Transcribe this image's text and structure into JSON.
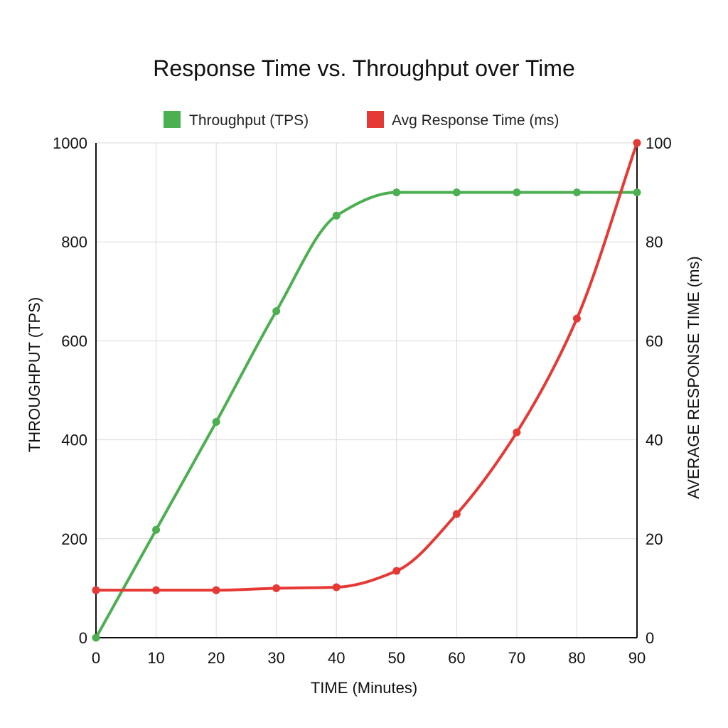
{
  "chart_data": {
    "type": "line",
    "title": "Response Time vs. Throughput over Time",
    "xlabel": "TIME (Minutes)",
    "ylabel_left": "THROUGHPUT (TPS)",
    "ylabel_right": "AVERAGE RESPONSE TIME (ms)",
    "x": [
      0,
      10,
      20,
      30,
      40,
      50,
      60,
      70,
      80,
      90
    ],
    "xlim": [
      0,
      90
    ],
    "ylim_left": [
      0,
      1000
    ],
    "ylim_right": [
      0,
      100
    ],
    "xticks": [
      "0",
      "10",
      "20",
      "30",
      "40",
      "50",
      "60",
      "70",
      "80",
      "90"
    ],
    "yticks_left": [
      "0",
      "200",
      "400",
      "600",
      "800",
      "1000"
    ],
    "yticks_right": [
      "0",
      "20",
      "40",
      "60",
      "80",
      "100"
    ],
    "grid": true,
    "legend_position": "top-center",
    "series": [
      {
        "name": "Throughput (TPS)",
        "axis": "left",
        "color": "#4caf50",
        "values": [
          0,
          218,
          436,
          660,
          853,
          900,
          900,
          900,
          900,
          900
        ]
      },
      {
        "name": "Avg Response Time (ms)",
        "axis": "right",
        "color": "#e53935",
        "values": [
          9.6,
          9.6,
          9.6,
          10.0,
          10.2,
          13.5,
          25,
          41.5,
          64.5,
          100
        ]
      }
    ]
  }
}
